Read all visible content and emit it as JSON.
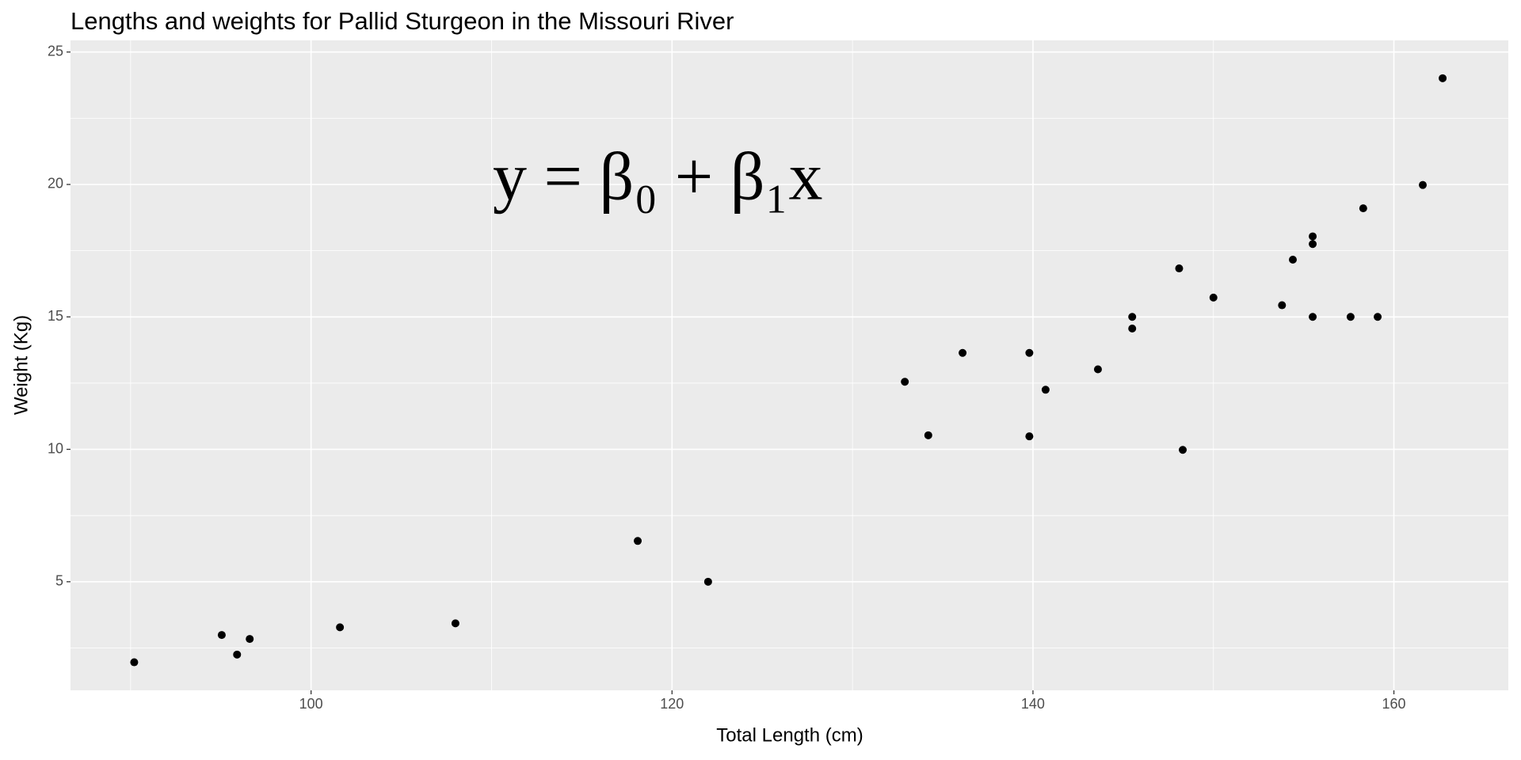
{
  "chart_data": {
    "type": "scatter",
    "title": "Lengths and weights for Pallid Sturgeon in the Missouri River",
    "annotation": "y = β₀ + β₁x",
    "x_label": "Total Length (cm)",
    "y_label": "Weight (Kg)",
    "color": "#000000",
    "grid": true,
    "xlim": [
      86.67,
      166.34
    ],
    "ylim": [
      0.9,
      25.44
    ],
    "xticks": [
      100,
      120,
      140,
      160
    ],
    "yticks": [
      5,
      10,
      15,
      20,
      25
    ],
    "series": [
      {
        "name": "Pallid Sturgeon",
        "color": "#000000",
        "x": [
          90.2,
          95.05,
          95.9,
          96.6,
          101.6,
          108.0,
          118.1,
          122.0,
          132.9,
          134.2,
          136.1,
          139.8,
          139.8,
          140.7,
          143.6,
          145.5,
          145.5,
          148.1,
          148.3,
          150.0,
          153.8,
          154.4,
          155.5,
          155.5,
          155.5,
          157.6,
          158.3,
          159.1,
          161.6,
          162.7
        ],
        "values": [
          1.96,
          2.99,
          2.25,
          2.84,
          3.28,
          3.43,
          6.54,
          5.0,
          12.55,
          10.53,
          13.64,
          13.64,
          10.49,
          12.25,
          13.02,
          15.0,
          14.56,
          16.83,
          9.98,
          15.73,
          15.44,
          17.16,
          18.04,
          17.75,
          15.0,
          15.0,
          19.1,
          15.0,
          19.98,
          24.01
        ]
      }
    ]
  }
}
